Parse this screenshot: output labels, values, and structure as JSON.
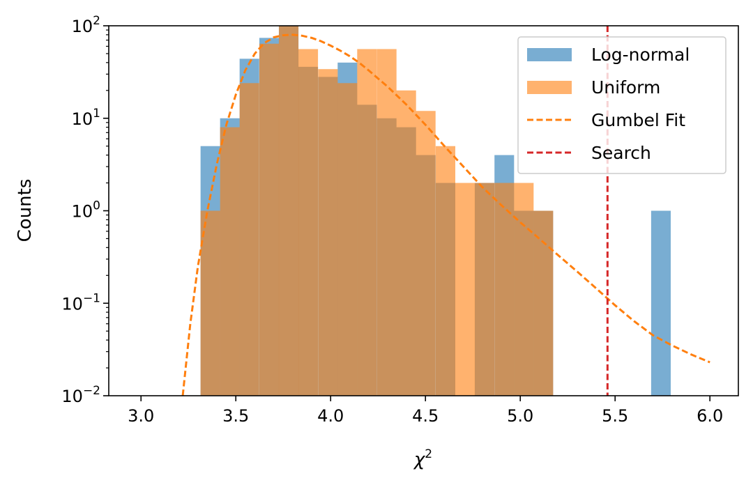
{
  "chart_data": {
    "type": "bar",
    "title": "",
    "xlabel": "χ²",
    "xlabel_base": "χ",
    "xlabel_sup": "2",
    "ylabel": "Counts",
    "xlim": [
      2.83,
      6.15
    ],
    "ylim": [
      0.01,
      100
    ],
    "yscale": "log",
    "grid": false,
    "legend_position": "top-right",
    "bin_width": 0.1033,
    "x_ticks": [
      {
        "value": 3.0,
        "label": "3.0"
      },
      {
        "value": 3.5,
        "label": "3.5"
      },
      {
        "value": 4.0,
        "label": "4.0"
      },
      {
        "value": 4.5,
        "label": "4.5"
      },
      {
        "value": 5.0,
        "label": "5.0"
      },
      {
        "value": 5.5,
        "label": "5.5"
      },
      {
        "value": 6.0,
        "label": "6.0"
      }
    ],
    "y_ticks": [
      {
        "value": 0.01,
        "base": "10",
        "exp": "−2"
      },
      {
        "value": 0.1,
        "base": "10",
        "exp": "−1"
      },
      {
        "value": 1,
        "base": "10",
        "exp": "0"
      },
      {
        "value": 10,
        "base": "10",
        "exp": "1"
      },
      {
        "value": 100,
        "base": "10",
        "exp": "2"
      }
    ],
    "series": [
      {
        "name": "Log-normal",
        "kind": "histogram",
        "color": "#1f77b4",
        "opacity": 0.6,
        "bins": [
          {
            "x": 3.314,
            "value": 5
          },
          {
            "x": 3.417,
            "value": 10
          },
          {
            "x": 3.52,
            "value": 44
          },
          {
            "x": 3.624,
            "value": 74
          },
          {
            "x": 3.727,
            "value": 100
          },
          {
            "x": 3.83,
            "value": 36
          },
          {
            "x": 3.934,
            "value": 28
          },
          {
            "x": 4.037,
            "value": 40
          },
          {
            "x": 4.14,
            "value": 14
          },
          {
            "x": 4.244,
            "value": 10
          },
          {
            "x": 4.347,
            "value": 8
          },
          {
            "x": 4.45,
            "value": 4
          },
          {
            "x": 4.554,
            "value": 2
          },
          {
            "x": 4.657,
            "value": 0.01
          },
          {
            "x": 4.76,
            "value": 2
          },
          {
            "x": 4.864,
            "value": 4
          },
          {
            "x": 4.967,
            "value": 1
          },
          {
            "x": 5.07,
            "value": 1
          },
          {
            "x": 5.69,
            "value": 1
          }
        ]
      },
      {
        "name": "Uniform",
        "kind": "histogram",
        "color": "#ff7f0e",
        "opacity": 0.6,
        "bins": [
          {
            "x": 3.314,
            "value": 1
          },
          {
            "x": 3.417,
            "value": 8
          },
          {
            "x": 3.52,
            "value": 24
          },
          {
            "x": 3.624,
            "value": 64
          },
          {
            "x": 3.727,
            "value": 100
          },
          {
            "x": 3.83,
            "value": 56
          },
          {
            "x": 3.934,
            "value": 34
          },
          {
            "x": 4.037,
            "value": 24
          },
          {
            "x": 4.14,
            "value": 56
          },
          {
            "x": 4.244,
            "value": 56
          },
          {
            "x": 4.347,
            "value": 20
          },
          {
            "x": 4.45,
            "value": 12
          },
          {
            "x": 4.554,
            "value": 5
          },
          {
            "x": 4.657,
            "value": 2
          },
          {
            "x": 4.76,
            "value": 2
          },
          {
            "x": 4.864,
            "value": 2
          },
          {
            "x": 4.967,
            "value": 2
          },
          {
            "x": 5.07,
            "value": 1
          }
        ]
      },
      {
        "name": "Gumbel Fit",
        "kind": "line",
        "color": "#ff7f0e",
        "dashed": true,
        "x": [
          3.22,
          3.26,
          3.3,
          3.35,
          3.4,
          3.45,
          3.5,
          3.55,
          3.6,
          3.65,
          3.7,
          3.75,
          3.8,
          3.85,
          3.9,
          3.95,
          4.0,
          4.05,
          4.1,
          4.15,
          4.2,
          4.3,
          4.4,
          4.5,
          4.6,
          4.7,
          4.8,
          4.9,
          5.0,
          5.1,
          5.2,
          5.3,
          5.4,
          5.5,
          5.6,
          5.7,
          5.8,
          5.9,
          6.0
        ],
        "y": [
          0.01,
          0.06,
          0.25,
          1.0,
          3.2,
          8.5,
          18,
          33,
          50,
          65,
          75,
          79,
          80,
          78,
          74,
          68,
          61,
          54,
          47,
          40,
          33,
          22,
          14,
          8.5,
          5.0,
          3.0,
          1.8,
          1.15,
          0.75,
          0.5,
          0.33,
          0.22,
          0.145,
          0.095,
          0.064,
          0.045,
          0.035,
          0.028,
          0.023
        ]
      },
      {
        "name": "Search",
        "kind": "vline",
        "color": "#d62728",
        "dashed": true,
        "x": 5.46
      }
    ]
  }
}
